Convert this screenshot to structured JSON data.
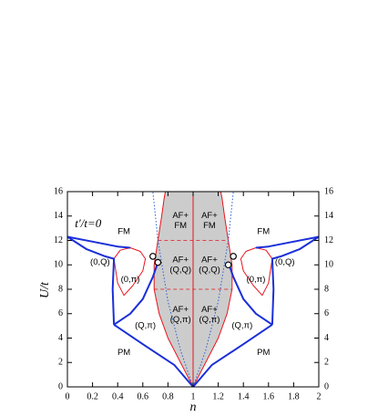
{
  "chart_data": {
    "type": "line",
    "xlabel": "n",
    "ylabel": "U/t",
    "xlim": [
      0,
      2
    ],
    "xticks": [
      0,
      0.2,
      0.4,
      0.6,
      0.8,
      1,
      1.2,
      1.4,
      1.6,
      1.8,
      2
    ],
    "ylim": [
      0,
      16
    ],
    "yticks": [
      0,
      2,
      4,
      6,
      8,
      10,
      12,
      14,
      16
    ],
    "y2lim": [
      0,
      16
    ],
    "y2ticks": [
      0,
      2,
      4,
      6,
      8,
      10,
      12,
      14,
      16
    ],
    "series": [
      {
        "kind": "area",
        "color": "#e8141c",
        "fill": "#cccccc",
        "x": [
          1,
          0.9,
          0.8,
          0.73,
          0.69,
          0.69,
          0.72,
          0.75,
          0.77,
          0.78,
          1.22,
          1.23,
          1.25,
          1.28,
          1.31,
          1.31,
          1.27,
          1.2,
          1.1,
          1
        ],
        "values": [
          0,
          2,
          4,
          6,
          8,
          10,
          12,
          14,
          15.5,
          16,
          16,
          15.5,
          14,
          12,
          10,
          8,
          6,
          4,
          2,
          0
        ]
      },
      {
        "kind": "line",
        "color": "#e8141c",
        "x": [
          1,
          1
        ],
        "values": [
          0,
          16
        ]
      },
      {
        "kind": "dashed",
        "color": "#e8141c",
        "x": [
          0.69,
          1.31
        ],
        "values": [
          8,
          8
        ]
      },
      {
        "kind": "dashed",
        "color": "#e8141c",
        "x": [
          0.72,
          1.28
        ],
        "values": [
          12,
          12
        ]
      },
      {
        "kind": "line",
        "color": "#e8141c",
        "x": [
          0.37,
          0.42,
          0.5,
          0.58,
          0.62,
          0.6,
          0.52,
          0.45,
          0.4,
          0.37
        ],
        "values": [
          10.5,
          11.2,
          11.4,
          11.1,
          10.5,
          9.5,
          8.3,
          7.5,
          8.5,
          10.5
        ]
      },
      {
        "kind": "line",
        "color": "#e8141c",
        "x": [
          1.63,
          1.58,
          1.5,
          1.42,
          1.38,
          1.4,
          1.48,
          1.55,
          1.6,
          1.63
        ],
        "values": [
          10.5,
          11.2,
          11.4,
          11.1,
          10.5,
          9.5,
          8.3,
          7.5,
          8.5,
          10.5
        ]
      },
      {
        "kind": "thick",
        "color": "#1a2fd8",
        "x": [
          0,
          0.15,
          0.3,
          0.37,
          0.36,
          0.37
        ],
        "values": [
          12.3,
          11.3,
          10.7,
          10.5,
          8,
          5.1
        ]
      },
      {
        "kind": "thick",
        "color": "#1a2fd8",
        "x": [
          0,
          0.2,
          0.4,
          0.5
        ],
        "values": [
          12.3,
          11.9,
          11.5,
          11.4
        ]
      },
      {
        "kind": "thick",
        "color": "#1a2fd8",
        "x": [
          0.37,
          0.6,
          0.85,
          1
        ],
        "values": [
          5.1,
          3.5,
          1.8,
          0
        ]
      },
      {
        "kind": "thick",
        "color": "#1a2fd8",
        "x": [
          0.37,
          0.5,
          0.6,
          0.68,
          0.72
        ],
        "values": [
          5.1,
          6,
          7.2,
          9,
          10.2
        ]
      },
      {
        "kind": "thick",
        "color": "#1a2fd8",
        "x": [
          2,
          1.85,
          1.7,
          1.63,
          1.64,
          1.63
        ],
        "values": [
          12.3,
          11.3,
          10.7,
          10.5,
          8,
          5.1
        ]
      },
      {
        "kind": "thick",
        "color": "#1a2fd8",
        "x": [
          2,
          1.8,
          1.6,
          1.5
        ],
        "values": [
          12.3,
          11.9,
          11.5,
          11.4
        ]
      },
      {
        "kind": "thick",
        "color": "#1a2fd8",
        "x": [
          1.63,
          1.4,
          1.15,
          1
        ],
        "values": [
          5.1,
          3.5,
          1.8,
          0
        ]
      },
      {
        "kind": "thick",
        "color": "#1a2fd8",
        "x": [
          1.63,
          1.5,
          1.4,
          1.32,
          1.28
        ],
        "values": [
          5.1,
          6,
          7.2,
          9,
          10.2
        ]
      },
      {
        "kind": "dotted",
        "color": "#2a5fd0",
        "x": [
          1,
          0.9,
          0.8,
          0.72,
          0.68
        ],
        "values": [
          0,
          3,
          7,
          12,
          16
        ]
      },
      {
        "kind": "dotted",
        "color": "#2a5fd0",
        "x": [
          1,
          1.1,
          1.2,
          1.28,
          1.32
        ],
        "values": [
          0,
          3,
          7,
          12,
          16
        ]
      },
      {
        "kind": "marker",
        "color": "#000000",
        "x": [
          0.68,
          0.72,
          1.28,
          1.32
        ],
        "values": [
          10.7,
          10.2,
          10.0,
          10.7
        ]
      }
    ],
    "annotations": [
      {
        "lines": [
          "t′/t=0"
        ],
        "x": 0.06,
        "y": 13.3,
        "italic": true,
        "anchor": "start"
      },
      {
        "lines": [
          "FM"
        ],
        "x": 0.45,
        "y": 12.7
      },
      {
        "lines": [
          "FM"
        ],
        "x": 1.56,
        "y": 12.7
      },
      {
        "lines": [
          "AF+",
          "FM"
        ],
        "x": 0.9,
        "y": 13.6
      },
      {
        "lines": [
          "AF+",
          "FM"
        ],
        "x": 1.13,
        "y": 13.6
      },
      {
        "lines": [
          "AF+",
          "(Q,Q)"
        ],
        "x": 0.9,
        "y": 10.0
      },
      {
        "lines": [
          "AF+",
          "(Q,Q)"
        ],
        "x": 1.13,
        "y": 10.0
      },
      {
        "lines": [
          "AF+",
          "(Q,π)"
        ],
        "x": 0.9,
        "y": 5.9
      },
      {
        "lines": [
          "AF+",
          "(Q,π)"
        ],
        "x": 1.13,
        "y": 5.9
      },
      {
        "lines": [
          "(0,Q)"
        ],
        "x": 0.26,
        "y": 10.2
      },
      {
        "lines": [
          "(0,Q)"
        ],
        "x": 1.73,
        "y": 10.2
      },
      {
        "lines": [
          "(0,π)"
        ],
        "x": 0.5,
        "y": 8.8
      },
      {
        "lines": [
          "(0,π)"
        ],
        "x": 1.5,
        "y": 8.8
      },
      {
        "lines": [
          "(Q,π)"
        ],
        "x": 0.62,
        "y": 5.0
      },
      {
        "lines": [
          "(Q,π)"
        ],
        "x": 1.39,
        "y": 5.0
      },
      {
        "lines": [
          "PM"
        ],
        "x": 0.45,
        "y": 2.8
      },
      {
        "lines": [
          "PM"
        ],
        "x": 1.56,
        "y": 2.8
      }
    ]
  }
}
